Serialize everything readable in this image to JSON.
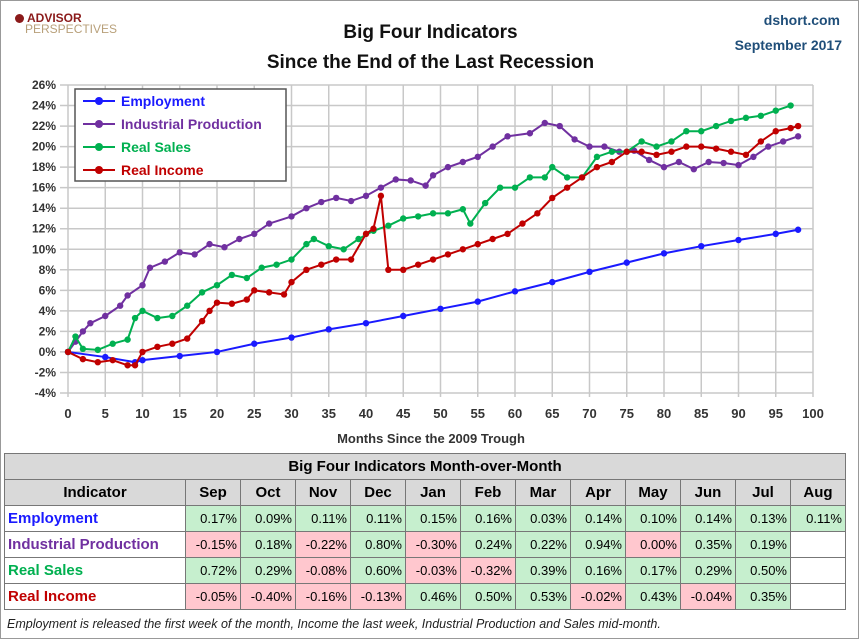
{
  "header": {
    "logo": "ADVISOR PERSPECTIVES",
    "title_line1": "Big Four Indicators",
    "title_line2": "Since the End of the Last Recession",
    "source": "dshort.com",
    "date": "September 2017"
  },
  "chart_data": {
    "type": "line",
    "title": "Big Four Indicators Since the End of the Last Recession",
    "xlabel": "Months Since the 2009 Trough",
    "ylabel": "",
    "xlim": [
      0,
      100
    ],
    "ylim": [
      -4,
      26
    ],
    "xticks": [
      0,
      5,
      10,
      15,
      20,
      25,
      30,
      35,
      40,
      45,
      50,
      55,
      60,
      65,
      70,
      75,
      80,
      85,
      90,
      95,
      100
    ],
    "yticks": [
      "-4%",
      "-2%",
      "0%",
      "2%",
      "4%",
      "6%",
      "8%",
      "10%",
      "12%",
      "14%",
      "16%",
      "18%",
      "20%",
      "22%",
      "24%",
      "26%"
    ],
    "grid": true,
    "legend": "top-left",
    "series": [
      {
        "name": "Employment",
        "color": "#1a1aff",
        "points": [
          [
            0,
            0
          ],
          [
            5,
            -0.5
          ],
          [
            9,
            -1.0
          ],
          [
            10,
            -0.8
          ],
          [
            15,
            -0.4
          ],
          [
            20,
            0
          ],
          [
            25,
            0.8
          ],
          [
            30,
            1.4
          ],
          [
            35,
            2.2
          ],
          [
            40,
            2.8
          ],
          [
            45,
            3.5
          ],
          [
            50,
            4.2
          ],
          [
            55,
            4.9
          ],
          [
            60,
            5.9
          ],
          [
            65,
            6.8
          ],
          [
            70,
            7.8
          ],
          [
            75,
            8.7
          ],
          [
            80,
            9.6
          ],
          [
            85,
            10.3
          ],
          [
            90,
            10.9
          ],
          [
            95,
            11.5
          ],
          [
            98,
            11.9
          ]
        ]
      },
      {
        "name": "Industrial Production",
        "color": "#7030a0",
        "points": [
          [
            0,
            0
          ],
          [
            1,
            1
          ],
          [
            2,
            2
          ],
          [
            3,
            2.8
          ],
          [
            5,
            3.5
          ],
          [
            7,
            4.5
          ],
          [
            8,
            5.5
          ],
          [
            10,
            6.5
          ],
          [
            11,
            8.2
          ],
          [
            13,
            8.8
          ],
          [
            15,
            9.7
          ],
          [
            17,
            9.5
          ],
          [
            19,
            10.5
          ],
          [
            21,
            10.2
          ],
          [
            23,
            11
          ],
          [
            25,
            11.5
          ],
          [
            27,
            12.5
          ],
          [
            30,
            13.2
          ],
          [
            32,
            14
          ],
          [
            34,
            14.6
          ],
          [
            36,
            15
          ],
          [
            38,
            14.7
          ],
          [
            40,
            15.2
          ],
          [
            42,
            16
          ],
          [
            44,
            16.8
          ],
          [
            46,
            16.7
          ],
          [
            48,
            16.2
          ],
          [
            49,
            17.2
          ],
          [
            51,
            18
          ],
          [
            53,
            18.5
          ],
          [
            55,
            19
          ],
          [
            57,
            20
          ],
          [
            59,
            21
          ],
          [
            62,
            21.3
          ],
          [
            64,
            22.3
          ],
          [
            66,
            22
          ],
          [
            68,
            20.7
          ],
          [
            70,
            20
          ],
          [
            72,
            20
          ],
          [
            74,
            19.5
          ],
          [
            76,
            19.6
          ],
          [
            78,
            18.7
          ],
          [
            80,
            18
          ],
          [
            82,
            18.5
          ],
          [
            84,
            17.8
          ],
          [
            86,
            18.5
          ],
          [
            88,
            18.4
          ],
          [
            90,
            18.2
          ],
          [
            92,
            19
          ],
          [
            94,
            20
          ],
          [
            96,
            20.5
          ],
          [
            98,
            21
          ]
        ]
      },
      {
        "name": "Real Sales",
        "color": "#00b050",
        "points": [
          [
            0,
            0
          ],
          [
            1,
            1.5
          ],
          [
            2,
            0.3
          ],
          [
            4,
            0.2
          ],
          [
            6,
            0.8
          ],
          [
            8,
            1.2
          ],
          [
            9,
            3.3
          ],
          [
            10,
            4.0
          ],
          [
            12,
            3.3
          ],
          [
            14,
            3.5
          ],
          [
            16,
            4.5
          ],
          [
            18,
            5.8
          ],
          [
            20,
            6.5
          ],
          [
            22,
            7.5
          ],
          [
            24,
            7.2
          ],
          [
            26,
            8.2
          ],
          [
            28,
            8.5
          ],
          [
            30,
            9.0
          ],
          [
            32,
            10.5
          ],
          [
            33,
            11
          ],
          [
            35,
            10.3
          ],
          [
            37,
            10
          ],
          [
            39,
            11
          ],
          [
            41,
            11.8
          ],
          [
            43,
            12.3
          ],
          [
            45,
            13
          ],
          [
            47,
            13.2
          ],
          [
            49,
            13.5
          ],
          [
            51,
            13.5
          ],
          [
            53,
            13.9
          ],
          [
            54,
            12.5
          ],
          [
            56,
            14.5
          ],
          [
            58,
            16
          ],
          [
            60,
            16
          ],
          [
            62,
            17
          ],
          [
            64,
            17
          ],
          [
            65,
            18
          ],
          [
            67,
            17
          ],
          [
            69,
            17
          ],
          [
            71,
            19
          ],
          [
            73,
            19.5
          ],
          [
            75,
            19.5
          ],
          [
            77,
            20.5
          ],
          [
            79,
            20
          ],
          [
            81,
            20.5
          ],
          [
            83,
            21.5
          ],
          [
            85,
            21.5
          ],
          [
            87,
            22
          ],
          [
            89,
            22.5
          ],
          [
            91,
            22.8
          ],
          [
            93,
            23
          ],
          [
            95,
            23.5
          ],
          [
            97,
            24
          ]
        ]
      },
      {
        "name": "Real Income",
        "color": "#c00000",
        "points": [
          [
            0,
            0
          ],
          [
            2,
            -0.7
          ],
          [
            4,
            -1
          ],
          [
            6,
            -0.8
          ],
          [
            8,
            -1.3
          ],
          [
            9,
            -1.3
          ],
          [
            10,
            0
          ],
          [
            12,
            0.5
          ],
          [
            14,
            0.8
          ],
          [
            16,
            1.3
          ],
          [
            18,
            3
          ],
          [
            19,
            4
          ],
          [
            20,
            4.8
          ],
          [
            22,
            4.7
          ],
          [
            24,
            5.1
          ],
          [
            25,
            6
          ],
          [
            27,
            5.8
          ],
          [
            29,
            5.6
          ],
          [
            30,
            6.8
          ],
          [
            32,
            8
          ],
          [
            34,
            8.5
          ],
          [
            36,
            9
          ],
          [
            38,
            9
          ],
          [
            40,
            11.5
          ],
          [
            41,
            12
          ],
          [
            42,
            15.2
          ],
          [
            43,
            8
          ],
          [
            45,
            8
          ],
          [
            47,
            8.5
          ],
          [
            49,
            9
          ],
          [
            51,
            9.5
          ],
          [
            53,
            10
          ],
          [
            55,
            10.5
          ],
          [
            57,
            11
          ],
          [
            59,
            11.5
          ],
          [
            61,
            12.5
          ],
          [
            63,
            13.5
          ],
          [
            65,
            15
          ],
          [
            67,
            16
          ],
          [
            69,
            17
          ],
          [
            71,
            18
          ],
          [
            73,
            18.5
          ],
          [
            75,
            19.5
          ],
          [
            77,
            19.5
          ],
          [
            79,
            19.2
          ],
          [
            81,
            19.5
          ],
          [
            83,
            20
          ],
          [
            85,
            20
          ],
          [
            87,
            19.8
          ],
          [
            89,
            19.5
          ],
          [
            91,
            19.2
          ],
          [
            93,
            20.5
          ],
          [
            95,
            21.5
          ],
          [
            97,
            21.8
          ],
          [
            98,
            22
          ]
        ]
      }
    ]
  },
  "table": {
    "title": "Big Four Indicators Month-over-Month",
    "header": "Indicator",
    "months": [
      "Sep",
      "Oct",
      "Nov",
      "Dec",
      "Jan",
      "Feb",
      "Mar",
      "Apr",
      "May",
      "Jun",
      "Jul",
      "Aug"
    ],
    "rows": [
      {
        "label": "Employment",
        "color": "#1a1aff",
        "values": [
          "0.17%",
          "0.09%",
          "0.11%",
          "0.11%",
          "0.15%",
          "0.16%",
          "0.03%",
          "0.14%",
          "0.10%",
          "0.14%",
          "0.13%",
          "0.11%"
        ],
        "status": [
          "pos",
          "pos",
          "pos",
          "pos",
          "pos",
          "pos",
          "pos",
          "pos",
          "pos",
          "pos",
          "pos",
          "pos"
        ]
      },
      {
        "label": "Industrial Production",
        "color": "#7030a0",
        "values": [
          "-0.15%",
          "0.18%",
          "-0.22%",
          "0.80%",
          "-0.30%",
          "0.24%",
          "0.22%",
          "0.94%",
          "0.00%",
          "0.35%",
          "0.19%",
          ""
        ],
        "status": [
          "neg",
          "pos",
          "neg",
          "pos",
          "neg",
          "pos",
          "pos",
          "pos",
          "neg",
          "pos",
          "pos",
          ""
        ]
      },
      {
        "label": "Real Sales",
        "color": "#00b050",
        "values": [
          "0.72%",
          "0.29%",
          "-0.08%",
          "0.60%",
          "-0.03%",
          "-0.32%",
          "0.39%",
          "0.16%",
          "0.17%",
          "0.29%",
          "0.50%",
          ""
        ],
        "status": [
          "pos",
          "pos",
          "neg",
          "pos",
          "neg",
          "neg",
          "pos",
          "pos",
          "pos",
          "pos",
          "pos",
          ""
        ]
      },
      {
        "label": "Real Income",
        "color": "#c00000",
        "values": [
          "-0.05%",
          "-0.40%",
          "-0.16%",
          "-0.13%",
          "0.46%",
          "0.50%",
          "0.53%",
          "-0.02%",
          "0.43%",
          "-0.04%",
          "0.35%",
          ""
        ],
        "status": [
          "neg",
          "neg",
          "neg",
          "neg",
          "pos",
          "pos",
          "pos",
          "neg",
          "pos",
          "neg",
          "pos",
          ""
        ]
      }
    ]
  },
  "note": "Employment is released the first week of the month, Income the last week, Industrial Production and Sales mid-month."
}
